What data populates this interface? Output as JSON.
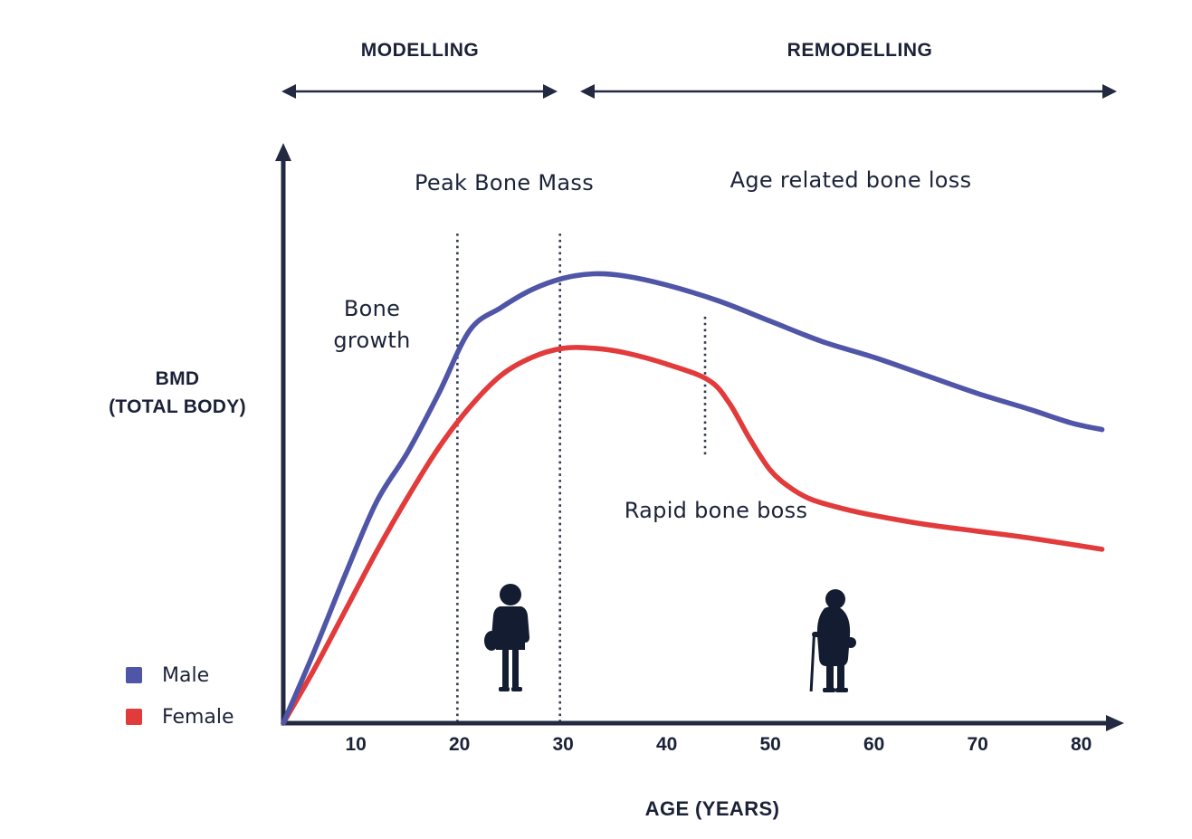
{
  "bands": {
    "modelling": "MODELLING",
    "remodelling": "REMODELLING"
  },
  "annotations": {
    "peak_bone_mass": "Peak Bone Mass",
    "age_related_bone_loss": "Age related bone loss",
    "bone_growth_line1": "Bone",
    "bone_growth_line2": "growth",
    "rapid_bone_loss": "Rapid bone boss"
  },
  "axes": {
    "y_label_line1": "BMD",
    "y_label_line2": "(TOTAL BODY)",
    "x_label": "AGE (YEARS)",
    "x_ticks": [
      "10",
      "20",
      "30",
      "40",
      "50",
      "60",
      "70",
      "80"
    ]
  },
  "legend": {
    "items": [
      {
        "label": "Male",
        "color": "#4f55a7"
      },
      {
        "label": "Female",
        "color": "#e23b3b"
      }
    ]
  },
  "colors": {
    "ink": "#1b2238",
    "axis": "#232941",
    "guide": "#343a52",
    "silhouette": "#141c32",
    "male": "#4f55a7",
    "female": "#e23b3b"
  },
  "chart_data": {
    "type": "line",
    "title": "",
    "xlabel": "AGE (YEARS)",
    "ylabel": "BMD (TOTAL BODY)",
    "x_tick_values": [
      10,
      20,
      30,
      40,
      50,
      60,
      70,
      80
    ],
    "xlim": [
      3,
      83.5
    ],
    "ylim": [
      0,
      110
    ],
    "y_units": "relative BMD (unitless)",
    "grid": false,
    "legend_position": "bottom-left",
    "series": [
      {
        "name": "Male",
        "color": "#4f55a7",
        "points": [
          [
            3,
            0
          ],
          [
            6,
            16
          ],
          [
            9,
            33
          ],
          [
            12,
            49
          ],
          [
            15,
            60
          ],
          [
            18,
            73
          ],
          [
            21,
            87
          ],
          [
            24,
            92
          ],
          [
            27,
            96
          ],
          [
            30,
            98.5
          ],
          [
            33,
            99.5
          ],
          [
            36,
            99
          ],
          [
            40,
            97
          ],
          [
            45,
            93.5
          ],
          [
            50,
            89
          ],
          [
            55,
            84.5
          ],
          [
            60,
            81
          ],
          [
            65,
            77
          ],
          [
            70,
            73
          ],
          [
            75,
            69.5
          ],
          [
            79,
            66.5
          ],
          [
            82,
            65
          ]
        ]
      },
      {
        "name": "Female",
        "color": "#e23b3b",
        "points": [
          [
            3,
            0
          ],
          [
            6,
            12
          ],
          [
            9,
            25
          ],
          [
            12,
            38
          ],
          [
            15,
            50
          ],
          [
            18,
            61
          ],
          [
            21,
            70
          ],
          [
            24,
            77
          ],
          [
            27,
            81
          ],
          [
            30,
            83
          ],
          [
            33,
            83
          ],
          [
            36,
            82
          ],
          [
            40,
            79.5
          ],
          [
            44,
            76
          ],
          [
            46,
            71
          ],
          [
            48,
            63
          ],
          [
            50,
            56
          ],
          [
            52,
            52
          ],
          [
            54,
            49.5
          ],
          [
            57,
            47.5
          ],
          [
            60,
            46
          ],
          [
            65,
            44
          ],
          [
            70,
            42.5
          ],
          [
            75,
            41
          ],
          [
            82,
            38.5
          ]
        ]
      }
    ],
    "guides": [
      {
        "age": 19.8,
        "v_top": 108.4,
        "v_bottom": 0,
        "style": "dotted",
        "meaning": "peak bone mass window start"
      },
      {
        "age": 29.7,
        "v_top": 108.4,
        "v_bottom": 0,
        "style": "dotted",
        "meaning": "peak bone mass window end"
      },
      {
        "age": 43.7,
        "v_top": 90,
        "v_bottom": 59.3,
        "style": "dotted",
        "meaning": "menopause / rapid loss onset"
      }
    ],
    "annotations": [
      {
        "text": "Peak Bone Mass",
        "near_age": 24
      },
      {
        "text": "Age related bone loss",
        "near_age": 58
      },
      {
        "text": "Bone growth",
        "near_age": 11
      },
      {
        "text": "Rapid bone boss",
        "near_age": 45
      }
    ]
  }
}
